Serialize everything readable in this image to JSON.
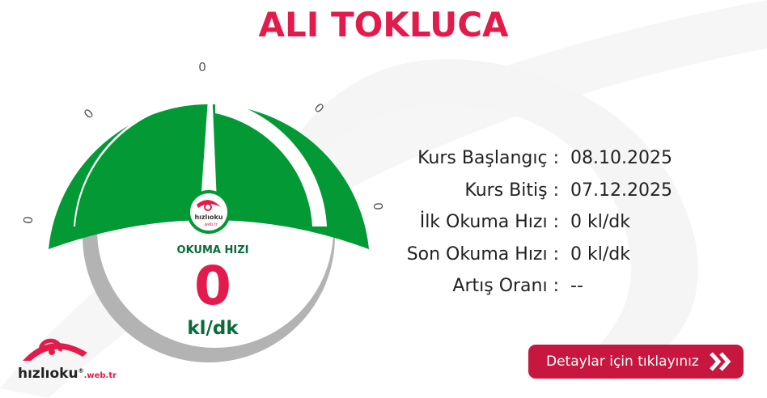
{
  "header": {
    "title": "ALI TOKLUCA"
  },
  "gauge": {
    "label": "OKUMA HIZI",
    "value": "0",
    "unit": "kl/dk",
    "ticks": [
      "0",
      "0",
      "0",
      "0",
      "0"
    ],
    "logo_text": "hızlıoku",
    "logo_sub": ".web.tr",
    "colors": {
      "arc": "#039a36",
      "ring": "#b3b3b3",
      "value": "#e31b4c",
      "label": "#0a6b3a"
    }
  },
  "info": {
    "rows": [
      {
        "label": "Kurs Başlangıç :",
        "value": "08.10.2025"
      },
      {
        "label": "Kurs Bitiş :",
        "value": "07.12.2025"
      },
      {
        "label": "İlk Okuma Hızı :",
        "value": "0 kl/dk"
      },
      {
        "label": "Son Okuma Hızı :",
        "value": "0 kl/dk"
      },
      {
        "label": "Artış Oranı :",
        "value": "--"
      }
    ]
  },
  "details_button": {
    "label": "Detaylar için tıklayınız",
    "icon": "double-chevron-right-icon",
    "color": "#c8173f"
  },
  "brand": {
    "name": "hızlıoku",
    "suffix": ".web.tr",
    "mark": "®",
    "color": "#e31b4c"
  }
}
